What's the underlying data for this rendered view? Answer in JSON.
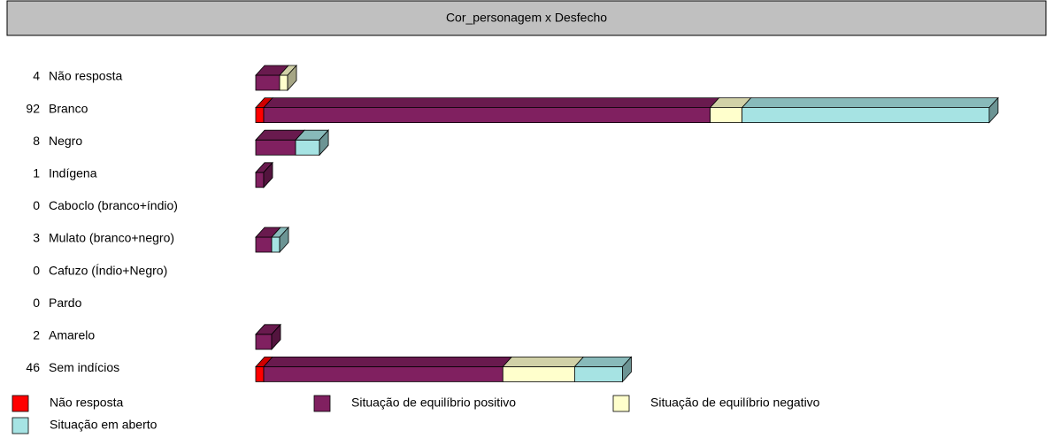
{
  "chart_data": {
    "type": "bar3d_stacked_horizontal",
    "title": "Cor_personagem x Desfecho",
    "categories": [
      "Não resposta",
      "Branco",
      "Negro",
      "Indígena",
      "Caboclo (branco+índio)",
      "Mulato (branco+negro)",
      "Cafuzo (Índio+Negro)",
      "Pardo",
      "Amarelo",
      "Sem indícios"
    ],
    "totals": [
      4,
      92,
      8,
      1,
      0,
      3,
      0,
      0,
      2,
      46
    ],
    "series": [
      {
        "name": "Não resposta",
        "color": "#ff0000",
        "values": [
          0,
          1,
          0,
          0,
          0,
          0,
          0,
          0,
          0,
          1
        ]
      },
      {
        "name": "Situação de equilíbrio positivo",
        "color": "#802060",
        "values": [
          3,
          56,
          5,
          1,
          0,
          2,
          0,
          0,
          2,
          30
        ]
      },
      {
        "name": "Situação de equilíbrio negativo",
        "color": "#ffffcc",
        "values": [
          1,
          4,
          0,
          0,
          0,
          0,
          0,
          0,
          0,
          9
        ]
      },
      {
        "name": "Situação em aberto",
        "color": "#a6e3e3",
        "values": [
          0,
          31,
          3,
          0,
          0,
          1,
          0,
          0,
          0,
          6
        ]
      }
    ]
  }
}
